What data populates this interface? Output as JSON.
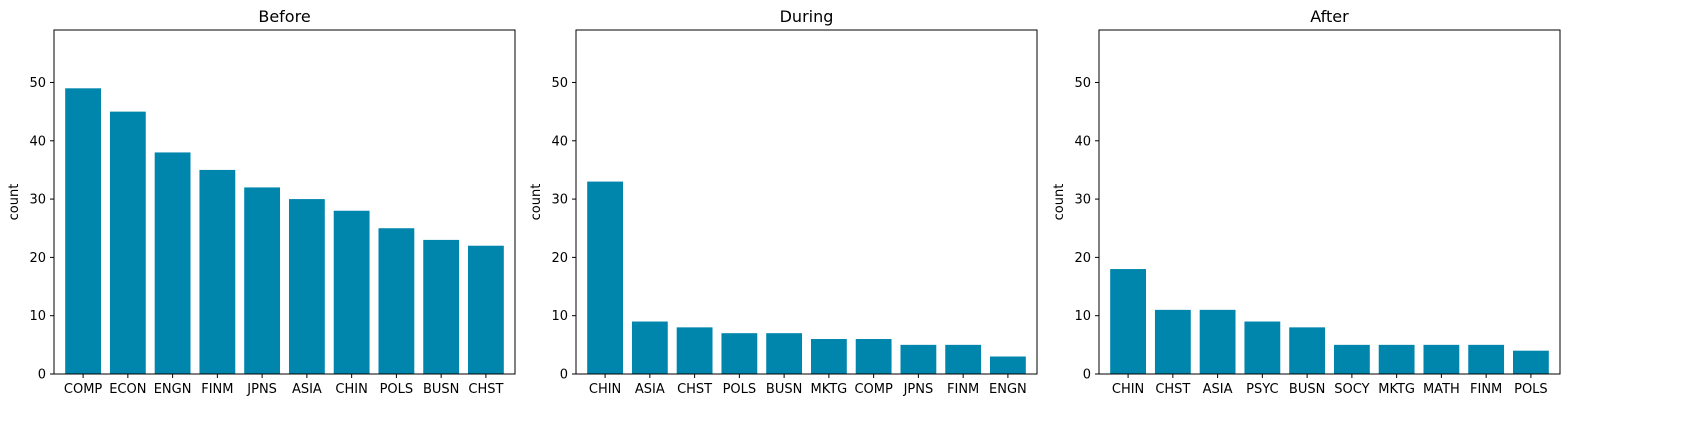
{
  "colors": {
    "bar": "#0085ad",
    "axis": "#000000",
    "background": "#ffffff"
  },
  "chart_data": [
    {
      "type": "bar",
      "title": "Before",
      "xlabel": "",
      "ylabel": "count",
      "ylim": [
        0,
        59
      ],
      "yticks": [
        0,
        10,
        20,
        30,
        40,
        50
      ],
      "categories": [
        "COMP",
        "ECON",
        "ENGN",
        "FINM",
        "JPNS",
        "ASIA",
        "CHIN",
        "POLS",
        "BUSN",
        "CHST"
      ],
      "values": [
        49,
        45,
        38,
        35,
        32,
        30,
        28,
        25,
        23,
        22
      ]
    },
    {
      "type": "bar",
      "title": "During",
      "xlabel": "",
      "ylabel": "count",
      "ylim": [
        0,
        59
      ],
      "yticks": [
        0,
        10,
        20,
        30,
        40,
        50
      ],
      "categories": [
        "CHIN",
        "ASIA",
        "CHST",
        "POLS",
        "BUSN",
        "MKTG",
        "COMP",
        "JPNS",
        "FINM",
        "ENGN"
      ],
      "values": [
        33,
        9,
        8,
        7,
        7,
        6,
        6,
        5,
        5,
        3
      ]
    },
    {
      "type": "bar",
      "title": "After",
      "xlabel": "",
      "ylabel": "count",
      "ylim": [
        0,
        59
      ],
      "yticks": [
        0,
        10,
        20,
        30,
        40,
        50
      ],
      "categories": [
        "CHIN",
        "CHST",
        "ASIA",
        "PSYC",
        "BUSN",
        "SOCY",
        "MKTG",
        "MATH",
        "FINM",
        "POLS"
      ],
      "values": [
        18,
        11,
        11,
        9,
        8,
        5,
        5,
        5,
        5,
        4
      ]
    }
  ]
}
